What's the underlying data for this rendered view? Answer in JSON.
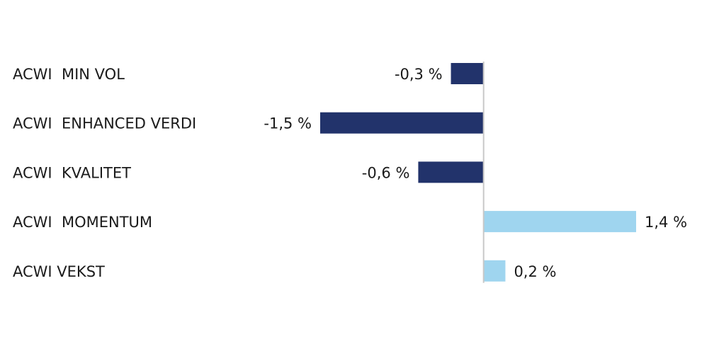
{
  "chart_data": {
    "type": "hbar",
    "categories": [
      "ACWI  MIN VOL",
      "ACWI  ENHANCED VERDI",
      "ACWI  KVALITET",
      "ACWI  MOMENTUM",
      "ACWI VEKST"
    ],
    "values": [
      -0.3,
      -1.5,
      -0.6,
      1.4,
      0.2
    ],
    "value_labels": [
      "-0,3 %",
      "-1,5 %",
      "-0,6 %",
      "1,4 %",
      "0,2 %"
    ],
    "colors": [
      "#22336b",
      "#22336b",
      "#22336b",
      "#9fd5ef",
      "#9fd5ef"
    ],
    "xlim": [
      -1.5,
      1.4
    ]
  }
}
